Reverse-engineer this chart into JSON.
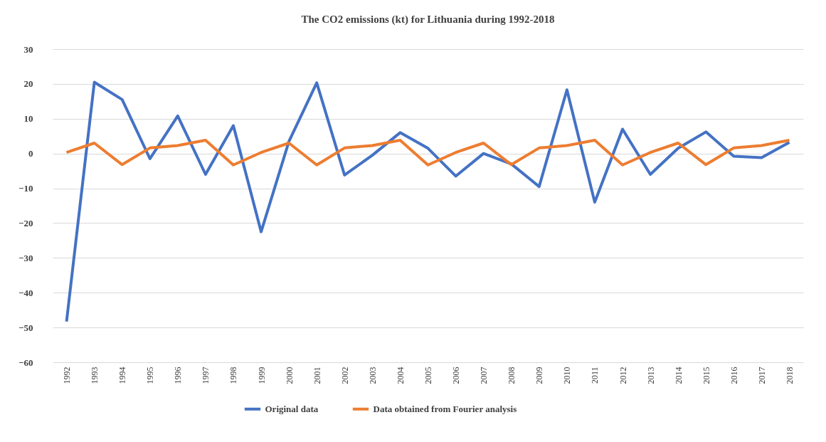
{
  "chart_data": {
    "type": "line",
    "title": "The CO2 emissions (kt) for Lithuania  during  1992-2018",
    "categories": [
      "1992",
      "1993",
      "1994",
      "1995",
      "1996",
      "1997",
      "1998",
      "1999",
      "2000",
      "2001",
      "2002",
      "2003",
      "2004",
      "2005",
      "2006",
      "2007",
      "2008",
      "2009",
      "2010",
      "2011",
      "2012",
      "2013",
      "2014",
      "2015",
      "2016",
      "2017",
      "2018"
    ],
    "series": [
      {
        "name": "Original data",
        "color": "#4472c4",
        "values": [
          -48.3,
          20.5,
          15.5,
          -1.5,
          10.8,
          -6,
          8,
          -22.5,
          3.5,
          20.3,
          -6.2,
          -0.5,
          6,
          1.5,
          -6.5,
          0,
          -3,
          -9.5,
          18.3,
          -14,
          7,
          -6,
          1.5,
          6.2,
          -0.8,
          -1.2,
          3.2
        ]
      },
      {
        "name": "Data obtained from Fourier analysis",
        "color": "#ed7d31",
        "values": [
          0.3,
          3,
          -3.2,
          1.6,
          2.3,
          3.8,
          -3.3,
          0.3,
          3,
          -3.3,
          1.6,
          2.3,
          3.8,
          -3.3,
          0.3,
          3,
          -3.2,
          1.6,
          2.3,
          3.8,
          -3.3,
          0.3,
          3,
          -3.2,
          1.6,
          2.3,
          3.8
        ]
      }
    ],
    "ylim": [
      -60,
      30
    ],
    "yticks": [
      -60,
      -50,
      -40,
      -30,
      -20,
      -10,
      0,
      10,
      20,
      30
    ],
    "grid": "y",
    "legend": "bottom",
    "marker": "none",
    "line_style": "solid"
  }
}
